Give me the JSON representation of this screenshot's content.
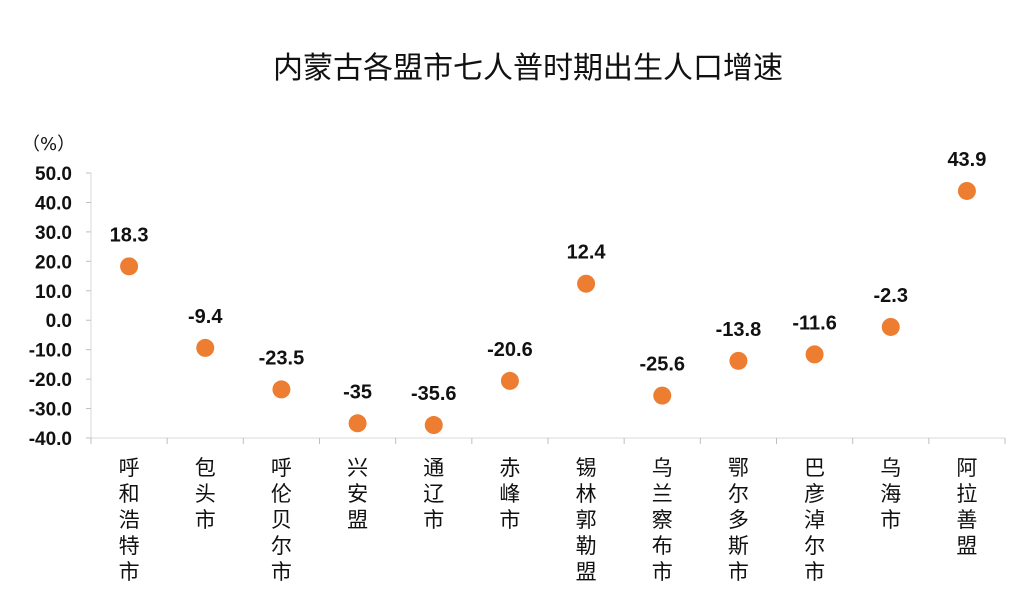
{
  "chart_data": {
    "type": "scatter",
    "title": "内蒙古各盟市七人普时期出生人口增速",
    "ylabel": "（%）",
    "ylim": [
      -40,
      50
    ],
    "y_ticks": [
      "50.0",
      "40.0",
      "30.0",
      "20.0",
      "10.0",
      "0.0",
      "-10.0",
      "-20.0",
      "-30.0",
      "-40.0"
    ],
    "categories": [
      "呼和浩特市",
      "包头市",
      "呼伦贝尔市",
      "兴安盟",
      "通辽市",
      "赤峰市",
      "锡林郭勒盟",
      "乌兰察布市",
      "鄂尔多斯市",
      "巴彦淖尔市",
      "乌海市",
      "阿拉善盟"
    ],
    "values": [
      18.3,
      -9.4,
      -23.5,
      -35,
      -35.6,
      -20.6,
      12.4,
      -25.6,
      -13.8,
      -11.6,
      -2.3,
      43.9
    ],
    "value_labels": [
      "18.3",
      "-9.4",
      "-23.5",
      "-35",
      "-35.6",
      "-20.6",
      "12.4",
      "-25.6",
      "-13.8",
      "-11.6",
      "-2.3",
      "43.9"
    ],
    "marker_color": "#ED7D31",
    "grid": false,
    "legend": "none"
  }
}
